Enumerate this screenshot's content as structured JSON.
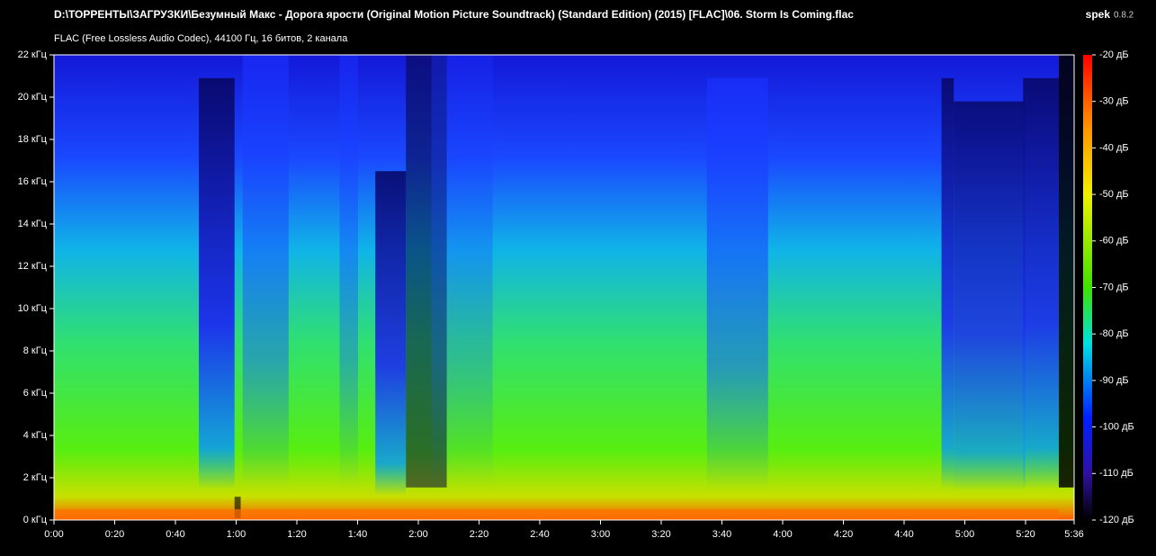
{
  "chart_data": {
    "type": "spectrogram",
    "title": "D:\\ТОРРЕНТЫ\\ЗАГРУЗКИ\\Безумный Макс - Дорога ярости (Original Motion Picture Soundtrack) (Standard Edition) (2015) [FLAC]\\06. Storm Is Coming.flac",
    "subtitle": "FLAC (Free Lossless Audio Codec), 44100 Гц, 16 битов, 2 канала",
    "app": "spek",
    "version": "0.8.2",
    "ylim": [
      0,
      22
    ],
    "yticks": [
      {
        "value": 0,
        "label": "0 кГц"
      },
      {
        "value": 2,
        "label": "2 кГц"
      },
      {
        "value": 4,
        "label": "4 кГц"
      },
      {
        "value": 6,
        "label": "6 кГц"
      },
      {
        "value": 8,
        "label": "8 кГц"
      },
      {
        "value": 10,
        "label": "10 кГц"
      },
      {
        "value": 12,
        "label": "12 кГц"
      },
      {
        "value": 14,
        "label": "14 кГц"
      },
      {
        "value": 16,
        "label": "16 кГц"
      },
      {
        "value": 18,
        "label": "18 кГц"
      },
      {
        "value": 20,
        "label": "20 кГц"
      },
      {
        "value": 22,
        "label": "22 кГц"
      }
    ],
    "xlim": [
      0,
      336
    ],
    "xticks": [
      {
        "value": 0,
        "label": "0:00"
      },
      {
        "value": 20,
        "label": "0:20"
      },
      {
        "value": 40,
        "label": "0:40"
      },
      {
        "value": 60,
        "label": "1:00"
      },
      {
        "value": 80,
        "label": "1:20"
      },
      {
        "value": 100,
        "label": "1:40"
      },
      {
        "value": 120,
        "label": "2:00"
      },
      {
        "value": 140,
        "label": "2:20"
      },
      {
        "value": 160,
        "label": "2:40"
      },
      {
        "value": 180,
        "label": "3:00"
      },
      {
        "value": 200,
        "label": "3:20"
      },
      {
        "value": 220,
        "label": "3:40"
      },
      {
        "value": 240,
        "label": "4:00"
      },
      {
        "value": 260,
        "label": "4:20"
      },
      {
        "value": 280,
        "label": "4:40"
      },
      {
        "value": 300,
        "label": "5:00"
      },
      {
        "value": 320,
        "label": "5:20"
      },
      {
        "value": 336,
        "label": "5:36"
      }
    ],
    "clim": [
      -120,
      -20
    ],
    "cticks": [
      {
        "value": -20,
        "label": "-20 дБ"
      },
      {
        "value": -30,
        "label": "-30 дБ"
      },
      {
        "value": -40,
        "label": "-40 дБ"
      },
      {
        "value": -50,
        "label": "-50 дБ"
      },
      {
        "value": -60,
        "label": "-60 дБ"
      },
      {
        "value": -70,
        "label": "-70 дБ"
      },
      {
        "value": -80,
        "label": "-80 дБ"
      },
      {
        "value": -90,
        "label": "-90 дБ"
      },
      {
        "value": -100,
        "label": "-100 дБ"
      },
      {
        "value": -110,
        "label": "-110 дБ"
      },
      {
        "value": -120,
        "label": "-120 дБ"
      }
    ]
  }
}
